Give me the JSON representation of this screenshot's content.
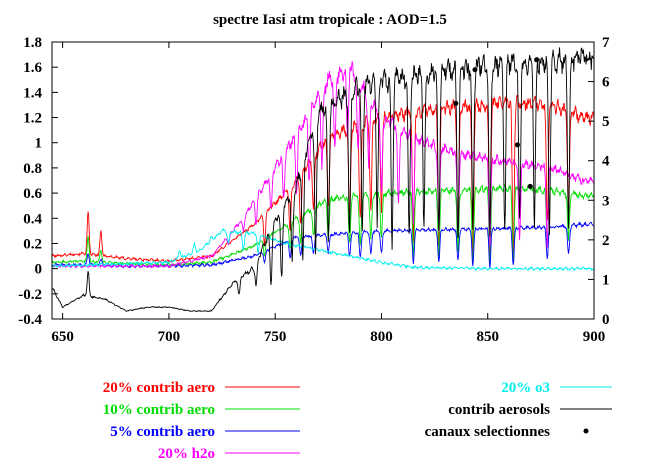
{
  "chart_data": {
    "type": "line",
    "title": "spectre Iasi atm tropicale : AOD=1.5",
    "xlim": [
      645,
      900
    ],
    "ylim_left": [
      -0.4,
      1.8
    ],
    "ylim_right": [
      0,
      7
    ],
    "x_ticks": [
      650,
      700,
      750,
      800,
      850,
      900
    ],
    "y_left_ticks": [
      -0.4,
      -0.2,
      0,
      0.2,
      0.4,
      0.6,
      0.8,
      1,
      1.2,
      1.4,
      1.6,
      1.8
    ],
    "y_right_ticks": [
      0,
      1,
      2,
      3,
      4,
      5,
      6,
      7
    ],
    "grid": false,
    "legend_placement": "below-plot",
    "series": [
      {
        "name": "20% contrib aero",
        "color": "#ff0000",
        "axis": "left",
        "base": [
          [
            645,
            0.1
          ],
          [
            660,
            0.12
          ],
          [
            680,
            0.08
          ],
          [
            700,
            0.06
          ],
          [
            720,
            0.1
          ],
          [
            740,
            0.35
          ],
          [
            760,
            0.7
          ],
          [
            775,
            1.05
          ],
          [
            800,
            1.2
          ],
          [
            830,
            1.28
          ],
          [
            860,
            1.32
          ],
          [
            880,
            1.3
          ],
          [
            895,
            1.2
          ]
        ],
        "dips": [
          [
            662,
            0.45
          ],
          [
            668,
            0.3
          ],
          [
            724,
            0.15
          ],
          [
            745,
            0.2
          ],
          [
            757,
            0.3
          ],
          [
            762,
            0.35
          ],
          [
            768,
            0.45
          ],
          [
            775,
            0.5
          ],
          [
            785,
            0.4
          ],
          [
            790,
            0.35
          ],
          [
            795,
            0.45
          ],
          [
            800,
            0.5
          ],
          [
            815,
            0.2
          ],
          [
            827,
            0.2
          ],
          [
            836,
            0.25
          ],
          [
            843,
            0.1
          ],
          [
            851,
            0.08
          ],
          [
            862,
            0.1
          ],
          [
            878,
            0.35
          ],
          [
            888,
            0.45
          ]
        ]
      },
      {
        "name": "10% contrib aero",
        "color": "#00dd00",
        "axis": "left",
        "base": [
          [
            645,
            0.05
          ],
          [
            660,
            0.06
          ],
          [
            680,
            0.04
          ],
          [
            700,
            0.03
          ],
          [
            720,
            0.05
          ],
          [
            740,
            0.18
          ],
          [
            760,
            0.4
          ],
          [
            775,
            0.55
          ],
          [
            800,
            0.6
          ],
          [
            830,
            0.62
          ],
          [
            860,
            0.64
          ],
          [
            880,
            0.62
          ],
          [
            895,
            0.58
          ]
        ],
        "dips": [
          [
            662,
            0.25
          ],
          [
            668,
            0.15
          ],
          [
            724,
            0.08
          ],
          [
            745,
            0.1
          ],
          [
            757,
            0.15
          ],
          [
            762,
            0.2
          ],
          [
            768,
            0.25
          ],
          [
            775,
            0.25
          ],
          [
            785,
            0.2
          ],
          [
            790,
            0.18
          ],
          [
            795,
            0.22
          ],
          [
            800,
            0.25
          ],
          [
            815,
            0.1
          ],
          [
            827,
            0.1
          ],
          [
            836,
            0.12
          ],
          [
            843,
            0.05
          ],
          [
            851,
            0.04
          ],
          [
            862,
            0.05
          ],
          [
            878,
            0.18
          ],
          [
            888,
            0.22
          ]
        ]
      },
      {
        "name": "5% contrib aero",
        "color": "#0000ff",
        "axis": "left",
        "base": [
          [
            645,
            0.03
          ],
          [
            660,
            0.03
          ],
          [
            680,
            0.02
          ],
          [
            700,
            0.02
          ],
          [
            720,
            0.03
          ],
          [
            740,
            0.1
          ],
          [
            760,
            0.25
          ],
          [
            775,
            0.27
          ],
          [
            800,
            0.3
          ],
          [
            830,
            0.31
          ],
          [
            860,
            0.32
          ],
          [
            880,
            0.33
          ],
          [
            895,
            0.35
          ]
        ],
        "dips": [
          [
            662,
            0.12
          ],
          [
            668,
            0.08
          ],
          [
            724,
            0.04
          ],
          [
            745,
            0.05
          ],
          [
            757,
            0.08
          ],
          [
            762,
            0.1
          ],
          [
            768,
            0.12
          ],
          [
            775,
            0.12
          ],
          [
            785,
            0.1
          ],
          [
            790,
            0.09
          ],
          [
            795,
            0.11
          ],
          [
            800,
            0.12
          ],
          [
            815,
            0.05
          ],
          [
            827,
            0.05
          ],
          [
            836,
            0.06
          ],
          [
            843,
            0.03
          ],
          [
            851,
            0.02
          ],
          [
            862,
            0.03
          ],
          [
            878,
            0.09
          ],
          [
            888,
            0.11
          ]
        ]
      },
      {
        "name": "20% h2o",
        "color": "#ff00ff",
        "axis": "left",
        "base": [
          [
            645,
            0.02
          ],
          [
            680,
            0.02
          ],
          [
            700,
            0.02
          ],
          [
            720,
            0.1
          ],
          [
            735,
            0.4
          ],
          [
            750,
            0.8
          ],
          [
            765,
            1.2
          ],
          [
            775,
            1.5
          ],
          [
            785,
            1.6
          ],
          [
            800,
            1.2
          ],
          [
            820,
            1.0
          ],
          [
            840,
            0.9
          ],
          [
            860,
            0.85
          ],
          [
            880,
            0.8
          ],
          [
            895,
            0.7
          ]
        ],
        "dips": [
          [
            721,
            0.1
          ],
          [
            728,
            0.2
          ],
          [
            735,
            0.3
          ],
          [
            741,
            0.35
          ],
          [
            748,
            0.45
          ],
          [
            754,
            0.55
          ],
          [
            760,
            0.6
          ],
          [
            766,
            0.7
          ],
          [
            772,
            0.8
          ],
          [
            778,
            0.9
          ],
          [
            784,
            1.0
          ],
          [
            789,
            0.9
          ],
          [
            794,
            0.8
          ],
          [
            800,
            0.6
          ],
          [
            808,
            0.5
          ],
          [
            815,
            0.4
          ],
          [
            827,
            0.3
          ],
          [
            836,
            0.3
          ],
          [
            851,
            0.2
          ],
          [
            865,
            0.2
          ],
          [
            878,
            0.2
          ]
        ]
      },
      {
        "name": "20% o3",
        "color": "#00eeee",
        "axis": "left",
        "base": [
          [
            645,
            0.02
          ],
          [
            700,
            0.05
          ],
          [
            715,
            0.15
          ],
          [
            725,
            0.3
          ],
          [
            740,
            0.28
          ],
          [
            755,
            0.2
          ],
          [
            770,
            0.15
          ],
          [
            785,
            0.1
          ],
          [
            800,
            0.05
          ],
          [
            815,
            0.01
          ],
          [
            850,
            0.0
          ],
          [
            900,
            0.0
          ]
        ],
        "dips": [
          [
            705,
            0.15
          ],
          [
            712,
            0.2
          ],
          [
            720,
            0.25
          ],
          [
            728,
            0.2
          ],
          [
            735,
            0.15
          ],
          [
            742,
            0.12
          ]
        ]
      },
      {
        "name": "contrib aerosols",
        "color": "#000000",
        "axis": "right",
        "base": [
          [
            645,
            0.8
          ],
          [
            650,
            0.3
          ],
          [
            660,
            0.6
          ],
          [
            670,
            0.5
          ],
          [
            680,
            0.2
          ],
          [
            690,
            0.3
          ],
          [
            700,
            0.3
          ],
          [
            710,
            0.2
          ],
          [
            720,
            0.2
          ],
          [
            730,
            0.9
          ],
          [
            740,
            1.3
          ],
          [
            750,
            2.5
          ],
          [
            760,
            3.4
          ],
          [
            770,
            5.2
          ],
          [
            790,
            5.9
          ],
          [
            800,
            6.0
          ],
          [
            820,
            6.2
          ],
          [
            840,
            6.35
          ],
          [
            860,
            6.45
          ],
          [
            880,
            6.5
          ],
          [
            895,
            6.6
          ]
        ],
        "dips": [
          [
            662,
            1.2
          ],
          [
            700,
            0.3
          ],
          [
            724,
            0.5
          ],
          [
            733,
            0.6
          ],
          [
            741,
            0.8
          ],
          [
            748,
            0.9
          ],
          [
            753,
            1.0
          ],
          [
            758,
            1.4
          ],
          [
            763,
            1.5
          ],
          [
            769,
            1.6
          ],
          [
            775,
            1.9
          ],
          [
            785,
            2.0
          ],
          [
            791,
            2.1
          ],
          [
            798,
            2.5
          ],
          [
            805,
            1.8
          ],
          [
            813,
            2.0
          ],
          [
            820,
            2.2
          ],
          [
            827,
            2.1
          ],
          [
            836,
            2.0
          ],
          [
            843,
            2.3
          ],
          [
            851,
            2.1
          ],
          [
            858,
            2.2
          ],
          [
            865,
            2.4
          ],
          [
            872,
            2.3
          ],
          [
            879,
            2.2
          ],
          [
            888,
            2.5
          ]
        ]
      },
      {
        "name": "canaux selectionnes",
        "color": "#000000",
        "axis": "right",
        "style": "points",
        "points": [
          [
            835,
            5.45
          ],
          [
            844,
            6.3
          ],
          [
            864,
            4.4
          ],
          [
            870,
            3.35
          ],
          [
            873,
            6.55
          ]
        ]
      }
    ]
  }
}
